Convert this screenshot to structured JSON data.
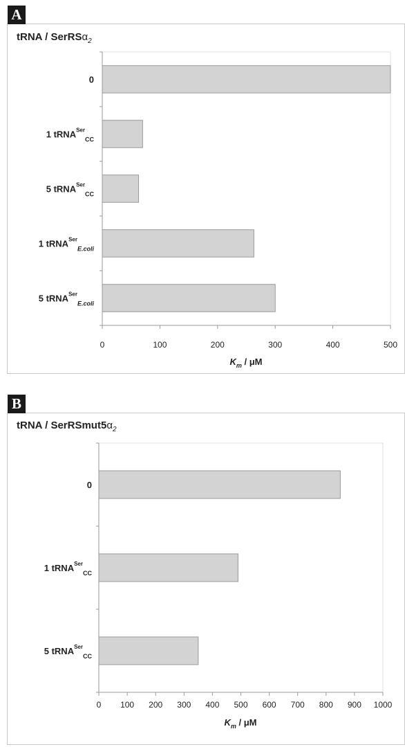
{
  "panels": [
    {
      "letter": "A",
      "title_main": "tRNA / SerRS",
      "title_symbol": "α",
      "title_sub": "2"
    },
    {
      "letter": "B",
      "title_main": "tRNA / SerRSmut5",
      "title_symbol": "α",
      "title_sub": "2"
    }
  ],
  "chart_data": [
    {
      "type": "bar",
      "orientation": "horizontal",
      "categories": [
        {
          "main": "0",
          "sup": "",
          "sub": ""
        },
        {
          "main": "1 tRNA",
          "sup": "Ser",
          "sub": "CC"
        },
        {
          "main": "5 tRNA",
          "sup": "Ser",
          "sub": "CC"
        },
        {
          "main": "1 tRNA",
          "sup": "Ser",
          "sub": "E.coli"
        },
        {
          "main": "5 tRNA",
          "sup": "Ser",
          "sub": "E.coli"
        }
      ],
      "values": [
        500,
        70,
        63,
        263,
        300
      ],
      "xlim": [
        0,
        500
      ],
      "ticks": [
        0,
        100,
        200,
        300,
        400,
        500
      ],
      "xlabel_main": "K",
      "xlabel_sub": "m",
      "xlabel_rest": " / μM",
      "bar_color": "#d3d3d3",
      "bar_stroke": "#9a9a9a",
      "grid": false
    },
    {
      "type": "bar",
      "orientation": "horizontal",
      "categories": [
        {
          "main": "0",
          "sup": "",
          "sub": ""
        },
        {
          "main": "1 tRNA",
          "sup": "Ser",
          "sub": "CC"
        },
        {
          "main": "5 tRNA",
          "sup": "Ser",
          "sub": "CC"
        }
      ],
      "values": [
        850,
        490,
        350
      ],
      "xlim": [
        0,
        1000
      ],
      "ticks": [
        0,
        100,
        200,
        300,
        400,
        500,
        600,
        700,
        800,
        900,
        1000
      ],
      "xlabel_main": "K",
      "xlabel_sub": "m",
      "xlabel_rest": " / μM",
      "bar_color": "#d3d3d3",
      "bar_stroke": "#9a9a9a",
      "grid": false
    }
  ]
}
